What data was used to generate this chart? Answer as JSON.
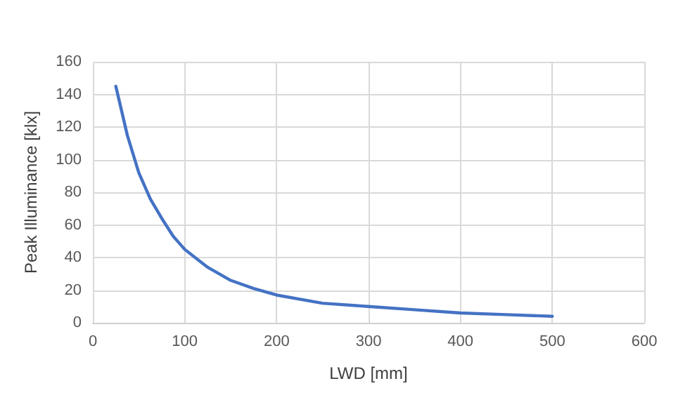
{
  "chart_data": {
    "type": "line",
    "xlabel": "LWD [mm]",
    "ylabel": "Peak Illuminance [klx]",
    "series": [
      {
        "color": "#4472c4",
        "x": [
          25,
          37.5,
          50,
          62.5,
          75,
          87.5,
          100,
          125,
          150,
          175,
          200,
          250,
          300,
          350,
          400,
          450,
          500
        ],
        "values": [
          145,
          115,
          92,
          76,
          64,
          53,
          45,
          34,
          26,
          21,
          17,
          12,
          10,
          8,
          6,
          5,
          4
        ]
      }
    ],
    "xlim": [
      0,
      600
    ],
    "xticks": [
      0,
      100,
      200,
      300,
      400,
      500,
      600
    ],
    "ylim": [
      0,
      160
    ],
    "yticks": [
      0,
      20,
      40,
      60,
      80,
      100,
      120,
      140,
      160
    ],
    "grid": true,
    "marker": "none",
    "line_style": "solid"
  }
}
